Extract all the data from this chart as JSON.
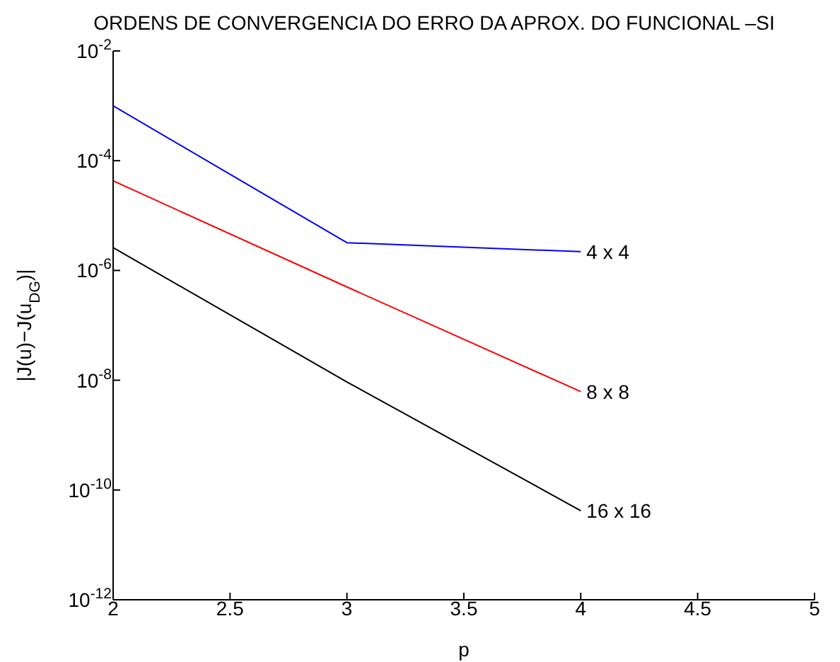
{
  "chart_data": {
    "type": "line",
    "title": "ORDENS DE CONVERGENCIA DO ERRO DA APROX. DO FUNCIONAL –SI",
    "xlabel": "p",
    "ylabel": "|J(u)−J(u$_{DG}$)|",
    "x": [
      2,
      3,
      4
    ],
    "series": [
      {
        "name": "4 x 4",
        "color": "#0000ff",
        "values": [
          0.001,
          3.2e-06,
          2.2e-06
        ]
      },
      {
        "name": "8 x 8",
        "color": "#ff0000",
        "values": [
          4.3e-05,
          5e-07,
          6.2e-09
        ]
      },
      {
        "name": "16 x 16",
        "color": "#000000",
        "values": [
          2.6e-06,
          9.3e-09,
          4.2e-11
        ]
      }
    ],
    "log": "y",
    "xlim": [
      2,
      5
    ],
    "xticks": [
      2,
      2.5,
      3,
      3.5,
      4,
      4.5,
      5
    ],
    "ylim": [
      1e-12,
      0.01
    ],
    "yticks": [
      {
        "value": 1e-12,
        "label": "10$^{-12}$"
      },
      {
        "value": 1e-10,
        "label": "10$^{-10}$"
      },
      {
        "value": 1e-08,
        "label": "10$^{-8}$"
      },
      {
        "value": 1e-06,
        "label": "10$^{-6}$"
      },
      {
        "value": 0.0001,
        "label": "10$^{-4}$"
      },
      {
        "value": 0.01,
        "label": "10$^{-2}$"
      }
    ],
    "grid": false,
    "legend": false,
    "marker": "none",
    "line_style": "solid"
  }
}
